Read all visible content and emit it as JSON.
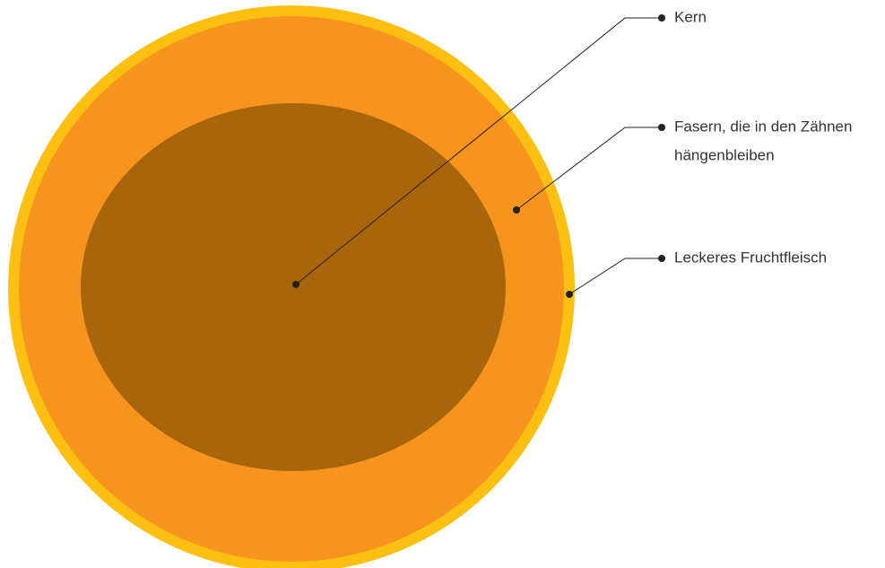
{
  "labels": [
    {
      "lines": [
        "Kern"
      ]
    },
    {
      "lines": [
        "Fasern, die in den Zähnen",
        "hängenbleiben"
      ]
    },
    {
      "lines": [
        "Leckeres Fruchtfleisch"
      ]
    }
  ]
}
